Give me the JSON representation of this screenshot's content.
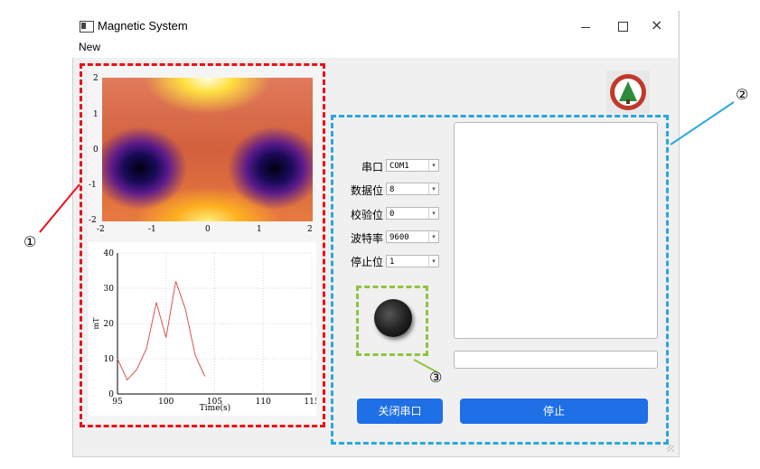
{
  "window": {
    "title": "Magnetic System"
  },
  "menu": {
    "items": [
      "New"
    ]
  },
  "heatmap": {
    "x_ticks": [
      "-2",
      "-1",
      "0",
      "1",
      "2"
    ],
    "y_ticks": [
      "2",
      "1",
      "0",
      "-1",
      "-2"
    ]
  },
  "chart_data": {
    "type": "line",
    "x": [
      95,
      96,
      97,
      98,
      99,
      100,
      101,
      102,
      103,
      104
    ],
    "series": [
      {
        "values": [
          10,
          4,
          7,
          13,
          26,
          16,
          32,
          24,
          11,
          5
        ],
        "color": "#d9534f"
      }
    ],
    "xlabel": "Time(s)",
    "ylabel": "mT",
    "xlim": [
      95,
      115
    ],
    "ylim": [
      0,
      40
    ],
    "x_ticks": [
      "95",
      "100",
      "105",
      "110",
      "115"
    ],
    "y_ticks": [
      "0",
      "10",
      "20",
      "30",
      "40"
    ],
    "grid": true
  },
  "serial": {
    "port": {
      "label": "串口",
      "value": "COM1"
    },
    "databits": {
      "label": "数据位",
      "value": "8"
    },
    "parity": {
      "label": "校验位",
      "value": "0"
    },
    "baud": {
      "label": "波特率",
      "value": "9600"
    },
    "stopbits": {
      "label": "停止位",
      "value": "1"
    }
  },
  "buttons": {
    "close_port": "关闭串口",
    "stop": "停止"
  },
  "annotations": {
    "one": "①",
    "two": "②",
    "three": "③"
  },
  "colors": {
    "red_box": "#e8121b",
    "blue_box": "#2aa7e0",
    "green_box": "#8cc63f",
    "button": "#1f6fe6"
  }
}
